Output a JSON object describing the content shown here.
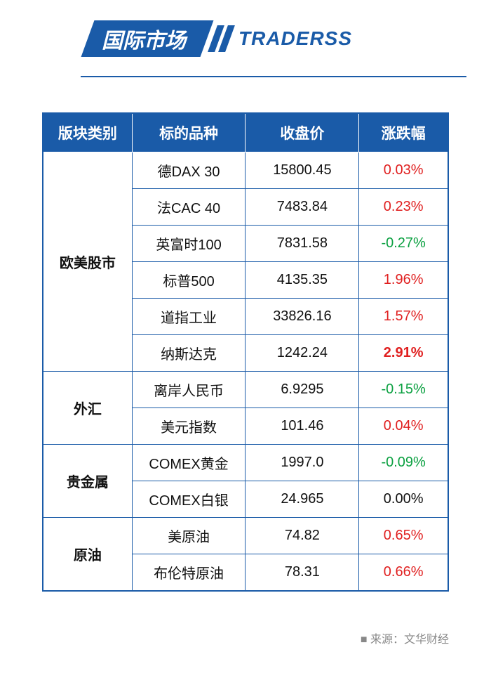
{
  "header": {
    "title": "国际市场",
    "brand": "TRADERSS"
  },
  "table": {
    "columns": [
      "版块类别",
      "标的品种",
      "收盘价",
      "涨跌幅"
    ],
    "categories": [
      {
        "name": "欧美股市",
        "rows": [
          {
            "instrument": "德DAX 30",
            "close": "15800.45",
            "change": "0.03%",
            "dir": "positive",
            "bold": false
          },
          {
            "instrument": "法CAC 40",
            "close": "7483.84",
            "change": "0.23%",
            "dir": "positive",
            "bold": false
          },
          {
            "instrument": "英富时100",
            "close": "7831.58",
            "change": "-0.27%",
            "dir": "negative",
            "bold": false
          },
          {
            "instrument": "标普500",
            "close": "4135.35",
            "change": "1.96%",
            "dir": "positive",
            "bold": false
          },
          {
            "instrument": "道指工业",
            "close": "33826.16",
            "change": "1.57%",
            "dir": "positive",
            "bold": false
          },
          {
            "instrument": "纳斯达克",
            "close": "1242.24",
            "change": "2.91%",
            "dir": "positive",
            "bold": true
          }
        ]
      },
      {
        "name": "外汇",
        "rows": [
          {
            "instrument": "离岸人民币",
            "close": "6.9295",
            "change": "-0.15%",
            "dir": "negative",
            "bold": false
          },
          {
            "instrument": "美元指数",
            "close": "101.46",
            "change": "0.04%",
            "dir": "positive",
            "bold": false
          }
        ]
      },
      {
        "name": "贵金属",
        "rows": [
          {
            "instrument": "COMEX黄金",
            "close": "1997.0",
            "change": "-0.09%",
            "dir": "negative",
            "bold": false
          },
          {
            "instrument": "COMEX白银",
            "close": "24.965",
            "change": "0.00%",
            "dir": "neutral",
            "bold": false
          }
        ]
      },
      {
        "name": "原油",
        "rows": [
          {
            "instrument": "美原油",
            "close": "74.82",
            "change": "0.65%",
            "dir": "positive",
            "bold": false
          },
          {
            "instrument": "布伦特原油",
            "close": "78.31",
            "change": "0.66%",
            "dir": "positive",
            "bold": false
          }
        ]
      }
    ]
  },
  "source": "来源：文华财经",
  "style": {
    "primary_color": "#1a5ba8",
    "positive_color": "#e02020",
    "negative_color": "#0aa040",
    "neutral_color": "#111111",
    "bg_color": "#ffffff",
    "header_font_size": 30,
    "brand_font_size": 28,
    "th_font_size": 21,
    "td_font_size": 20,
    "source_font_size": 16
  }
}
